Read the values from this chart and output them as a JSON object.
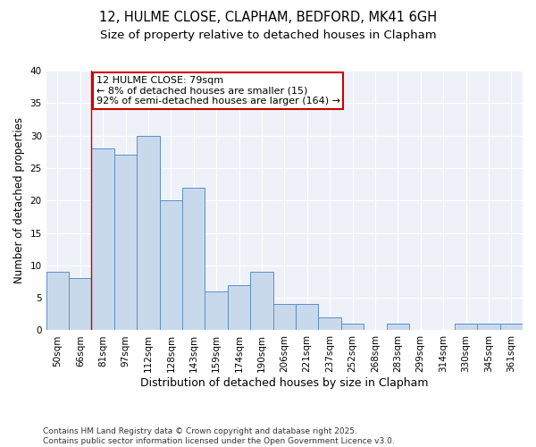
{
  "title1": "12, HULME CLOSE, CLAPHAM, BEDFORD, MK41 6GH",
  "title2": "Size of property relative to detached houses in Clapham",
  "xlabel": "Distribution of detached houses by size in Clapham",
  "ylabel": "Number of detached properties",
  "categories": [
    "50sqm",
    "66sqm",
    "81sqm",
    "97sqm",
    "112sqm",
    "128sqm",
    "143sqm",
    "159sqm",
    "174sqm",
    "190sqm",
    "206sqm",
    "221sqm",
    "237sqm",
    "252sqm",
    "268sqm",
    "283sqm",
    "299sqm",
    "314sqm",
    "330sqm",
    "345sqm",
    "361sqm"
  ],
  "values": [
    9,
    8,
    28,
    27,
    30,
    20,
    22,
    6,
    7,
    9,
    4,
    4,
    2,
    1,
    0,
    1,
    0,
    0,
    1,
    1,
    1
  ],
  "bar_color": "#c9d9ec",
  "bar_edge_color": "#5b8fc9",
  "annotation_text": "12 HULME CLOSE: 79sqm\n← 8% of detached houses are smaller (15)\n92% of semi-detached houses are larger (164) →",
  "annotation_box_color": "#ffffff",
  "annotation_box_edge": "#cc0000",
  "ylim": [
    0,
    40
  ],
  "yticks": [
    0,
    5,
    10,
    15,
    20,
    25,
    30,
    35,
    40
  ],
  "bg_color": "#eef2f8",
  "footer_text": "Contains HM Land Registry data © Crown copyright and database right 2025.\nContains public sector information licensed under the Open Government Licence v3.0.",
  "title_fontsize": 10.5,
  "subtitle_fontsize": 9.5,
  "axis_label_fontsize": 8.5,
  "tick_fontsize": 7.5,
  "annotation_fontsize": 8,
  "footer_fontsize": 6.5
}
